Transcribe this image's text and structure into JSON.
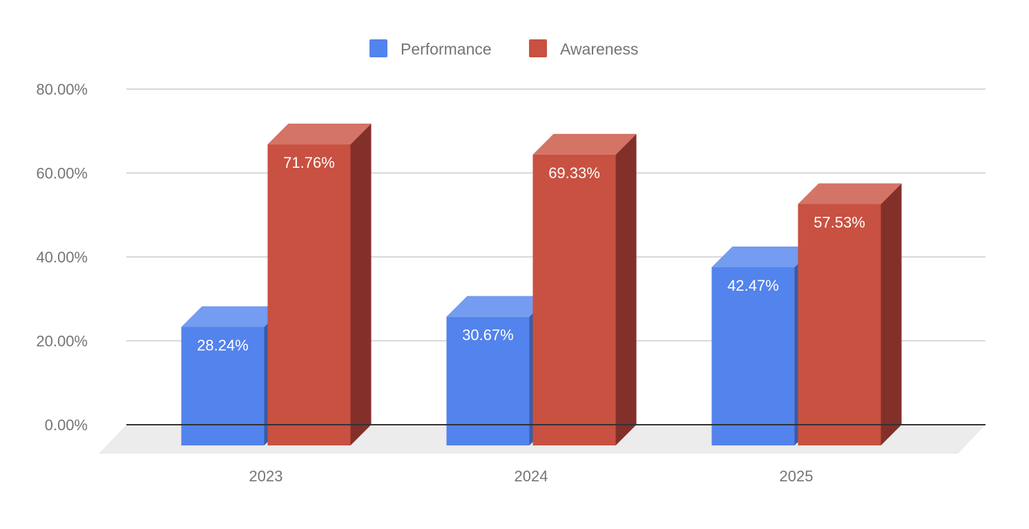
{
  "chart_data": {
    "type": "bar",
    "style": "3d",
    "title": "",
    "xlabel": "",
    "ylabel": "",
    "categories": [
      "2023",
      "2024",
      "2025"
    ],
    "series": [
      {
        "name": "Performance",
        "values": [
          28.24,
          30.67,
          42.47
        ],
        "labels": [
          "28.24%",
          "30.67%",
          "42.47%"
        ],
        "color": "#5383EC",
        "top_color": "#749CF0",
        "side_color": "#3A5CA5"
      },
      {
        "name": "Awareness",
        "values": [
          71.76,
          69.33,
          57.53
        ],
        "labels": [
          "71.76%",
          "69.33%",
          "57.53%"
        ],
        "color": "#C85141",
        "top_color": "#D47466",
        "side_color": "#84302A"
      }
    ],
    "yticks": [
      "0.00%",
      "20.00%",
      "40.00%",
      "60.00%",
      "80.00%"
    ],
    "ytick_values": [
      0,
      20,
      40,
      60,
      80
    ],
    "ylim": [
      0,
      80
    ],
    "grid": true,
    "legend_position": "top"
  }
}
